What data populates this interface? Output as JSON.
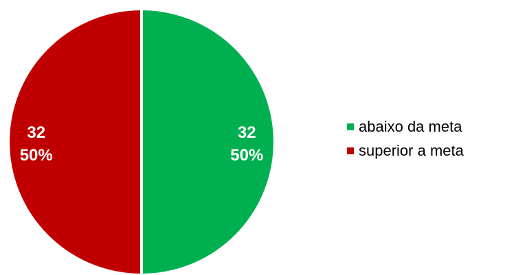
{
  "chart_data": {
    "type": "pie",
    "title": "",
    "slices": [
      {
        "label": "abaixo da meta",
        "value": 32,
        "percent": "50%",
        "color": "#00B050"
      },
      {
        "label": "superior a meta",
        "value": 32,
        "percent": "50%",
        "color": "#C00000"
      }
    ],
    "legend_position": "right",
    "start_angle_deg": 0,
    "direction": "clockwise"
  }
}
